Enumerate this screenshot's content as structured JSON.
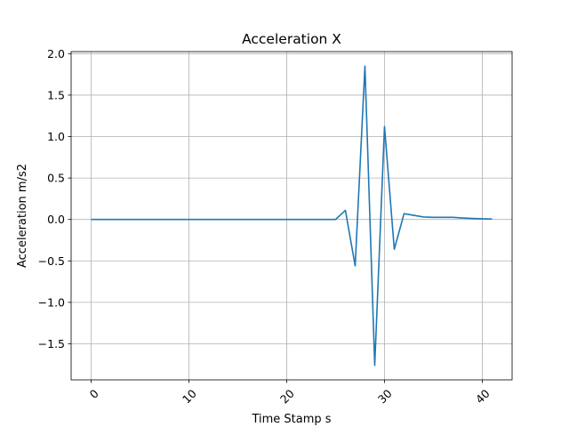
{
  "chart_data": {
    "type": "line",
    "title": "Acceleration X",
    "xlabel": "Time Stamp s",
    "ylabel": "Acceleration m/s2",
    "xlim": [
      -2.05,
      43.05
    ],
    "ylim": [
      -1.935,
      2.025
    ],
    "grid": true,
    "x_ticks": [
      0,
      10,
      20,
      30,
      40
    ],
    "x_tick_labels": [
      "0",
      "10",
      "20",
      "30",
      "40"
    ],
    "y_ticks": [
      -1.5,
      -1.0,
      -0.5,
      0.0,
      0.5,
      1.0,
      1.5,
      2.0
    ],
    "y_tick_labels": [
      "−1.5",
      "−1.0",
      "−0.5",
      "0.0",
      "0.5",
      "1.0",
      "1.5",
      "2.0"
    ],
    "series": [
      {
        "color": "#1f77b4",
        "x": [
          0,
          1,
          2,
          3,
          4,
          5,
          6,
          7,
          8,
          9,
          10,
          11,
          12,
          13,
          14,
          15,
          16,
          17,
          18,
          19,
          20,
          21,
          22,
          23,
          24,
          25,
          26,
          27,
          28,
          29,
          30,
          31,
          32,
          33,
          34,
          35,
          36,
          37,
          38,
          39,
          40,
          41
        ],
        "values": [
          0,
          0,
          0,
          0,
          0,
          0,
          0,
          0,
          0,
          0,
          0,
          0,
          0,
          0,
          0,
          0,
          0,
          0,
          0,
          0,
          0,
          0,
          0,
          0,
          0,
          0,
          0.11,
          -0.56,
          1.85,
          -1.76,
          1.12,
          -0.36,
          0.07,
          0.05,
          0.03,
          0.025,
          0.025,
          0.025,
          0.018,
          0.012,
          0.008,
          0.005
        ]
      }
    ]
  }
}
